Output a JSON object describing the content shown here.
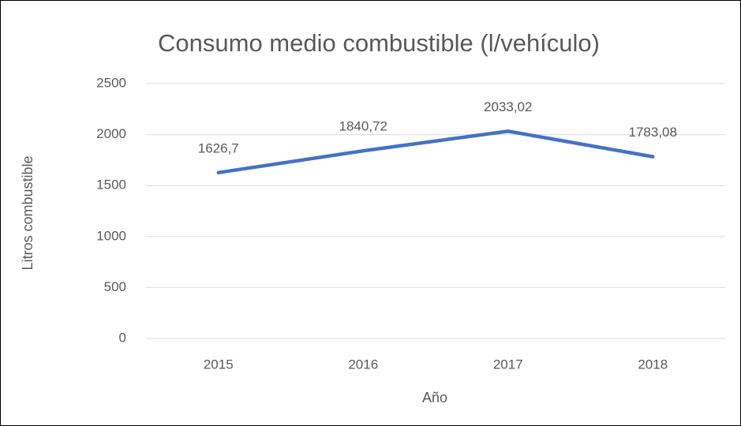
{
  "chart_data": {
    "type": "line",
    "title": "Consumo medio combustible (l/vehículo)",
    "x_label": "Año",
    "y_label": "Litros combustible",
    "categories": [
      "2015",
      "2016",
      "2017",
      "2018"
    ],
    "series": [
      {
        "name": "Consumo medio combustible (l/vehículo)",
        "color": "#4472c4",
        "values": [
          1626.7,
          1840.72,
          2033.02,
          1783.08
        ],
        "value_labels": [
          "1626,7",
          "1840,72",
          "2033,02",
          "1783,08"
        ]
      }
    ],
    "ylim": [
      0,
      2500
    ],
    "yticks": [
      0,
      500,
      1000,
      1500,
      2000,
      2500
    ],
    "grid": true
  }
}
